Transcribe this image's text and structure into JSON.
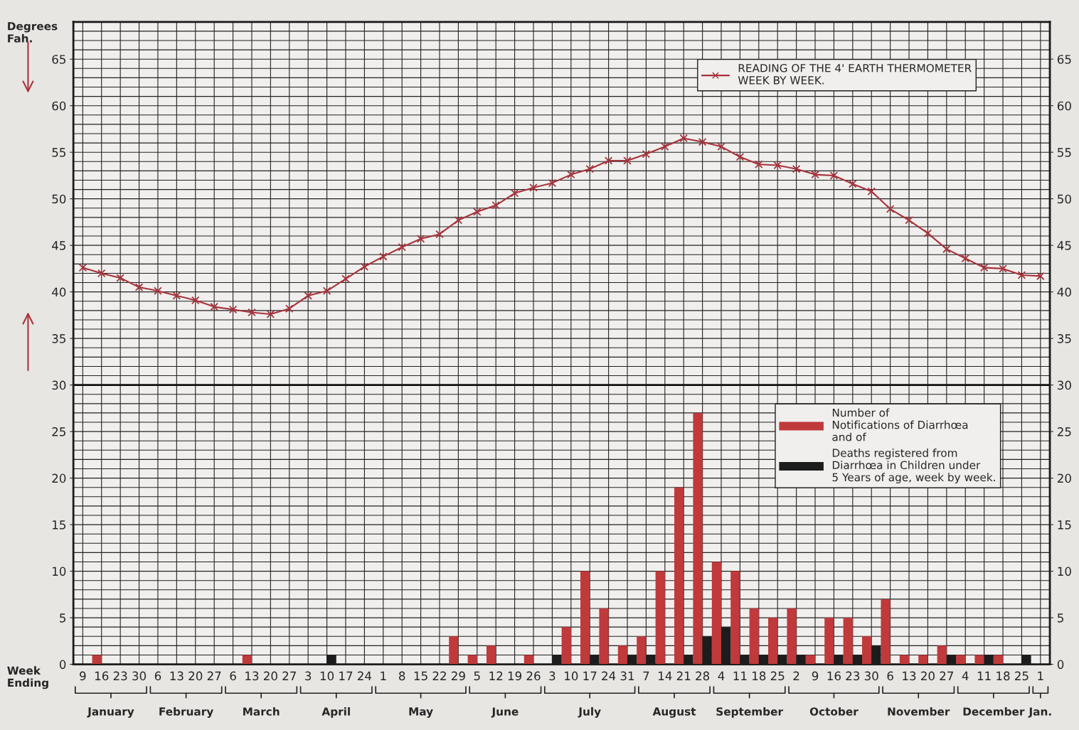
{
  "chart_data": {
    "type": "bar",
    "ylabel": "Degrees\nFah.",
    "xlabel": "Week\nEnding",
    "categories": [
      "9",
      "16",
      "23",
      "30",
      "6",
      "13",
      "20",
      "27",
      "6",
      "13",
      "20",
      "27",
      "3",
      "10",
      "17",
      "24",
      "1",
      "8",
      "15",
      "22",
      "29",
      "5",
      "12",
      "19",
      "26",
      "3",
      "10",
      "17",
      "24",
      "31",
      "7",
      "14",
      "21",
      "28",
      "4",
      "11",
      "18",
      "25",
      "2",
      "9",
      "16",
      "23",
      "30",
      "6",
      "13",
      "20",
      "27",
      "4",
      "11",
      "18",
      "25",
      "1"
    ],
    "series": [
      {
        "name": "READING OF THE 4' EARTH THERMOMETER\nWEEK BY WEEK.",
        "type": "line",
        "color": "#a8323c",
        "marker": "cross",
        "line_style": "solid",
        "values": [
          42.6,
          42.0,
          41.5,
          40.5,
          40.1,
          39.6,
          39.1,
          38.4,
          38.1,
          37.8,
          37.6,
          38.2,
          39.6,
          40.1,
          41.4,
          42.7,
          43.8,
          44.8,
          45.7,
          46.2,
          47.7,
          48.6,
          49.3,
          50.6,
          51.2,
          51.7,
          52.6,
          53.2,
          54.1,
          54.1,
          54.8,
          55.6,
          56.5,
          56.1,
          55.6,
          54.5,
          53.7,
          53.6,
          53.2,
          52.6,
          52.5,
          51.6,
          50.8,
          48.9,
          47.7,
          46.3,
          44.6,
          43.6,
          42.6,
          42.5,
          41.8,
          41.7
        ]
      },
      {
        "name": "Number of\nNotifications of Diarrhœa\nand of",
        "color": "#c0393b",
        "values": [
          0,
          1,
          0,
          0,
          0,
          0,
          0,
          0,
          0,
          1,
          0,
          0,
          0,
          0,
          0,
          0,
          0,
          0,
          0,
          0,
          3,
          1,
          2,
          0,
          1,
          0,
          4,
          10,
          6,
          2,
          3,
          10,
          19,
          27,
          11,
          10,
          6,
          5,
          6,
          1,
          5,
          5,
          3,
          7,
          1,
          1,
          2,
          1,
          1,
          1,
          0,
          0
        ]
      },
      {
        "name": "Deaths registered from\nDiarrhœa in Children under\n5 Years of age, week by week.",
        "color": "#1c1c1c",
        "values": [
          0,
          0,
          0,
          0,
          0,
          0,
          0,
          0,
          0,
          0,
          0,
          0,
          0,
          1,
          0,
          0,
          0,
          0,
          0,
          0,
          0,
          0,
          0,
          0,
          0,
          1,
          0,
          1,
          0,
          1,
          1,
          0,
          1,
          3,
          4,
          1,
          1,
          1,
          1,
          0,
          1,
          1,
          2,
          0,
          0,
          0,
          1,
          0,
          1,
          0,
          1,
          0
        ]
      }
    ],
    "ylim": [
      0,
      69
    ],
    "yticks": [
      0,
      5,
      10,
      15,
      20,
      25,
      30,
      35,
      40,
      45,
      50,
      55,
      60,
      65
    ],
    "y2lim": [
      0,
      69
    ],
    "y2ticks": [
      0,
      5,
      10,
      15,
      20,
      25,
      30,
      35,
      40,
      45,
      50,
      55,
      60,
      65
    ],
    "ref_lines": [
      {
        "axis": "y",
        "value": 30,
        "color": "#111111"
      }
    ],
    "annotations": [
      "January",
      "February",
      "March",
      "April",
      "May",
      "June",
      "July",
      "August",
      "September",
      "October",
      "November",
      "December",
      "Jan."
    ],
    "grid": true,
    "legend": "right"
  }
}
